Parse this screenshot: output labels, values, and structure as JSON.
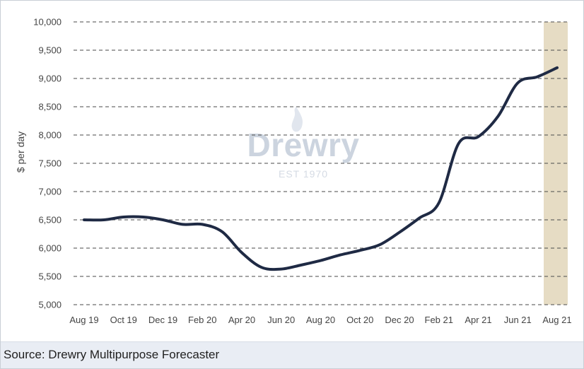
{
  "chart_data": {
    "type": "line",
    "xlabel": "",
    "ylabel": "$ per day",
    "ylim": [
      5000,
      10000
    ],
    "yticks": [
      5000,
      5500,
      6000,
      6500,
      7000,
      7500,
      8000,
      8500,
      9000,
      9500,
      10000
    ],
    "ytick_labels": [
      "5,000",
      "5,500",
      "6,000",
      "6,500",
      "7,000",
      "7,500",
      "8,000",
      "8,500",
      "9,000",
      "9,500",
      "10,000"
    ],
    "categories": [
      "Aug 19",
      "Sep 19",
      "Oct 19",
      "Nov 19",
      "Dec 19",
      "Jan 20",
      "Feb 20",
      "Mar 20",
      "Apr 20",
      "May 20",
      "Jun 20",
      "Jul 20",
      "Aug 20",
      "Sep 20",
      "Oct 20",
      "Nov 20",
      "Dec 20",
      "Jan 21",
      "Feb 21",
      "Mar 21",
      "Apr 21",
      "May 21",
      "Jun 21",
      "Jul 21",
      "Aug 21"
    ],
    "tick_labels": [
      "Aug 19",
      "Oct 19",
      "Dec 19",
      "Feb 20",
      "Apr 20",
      "Jun 20",
      "Aug 20",
      "Oct 20",
      "Dec 20",
      "Feb 21",
      "Apr 21",
      "Jun 21",
      "Aug 21"
    ],
    "series": [
      {
        "values": [
          6500,
          6500,
          6550,
          6550,
          6500,
          6420,
          6420,
          6290,
          5920,
          5660,
          5630,
          5700,
          5780,
          5880,
          5960,
          6060,
          6280,
          6530,
          6800,
          7850,
          7970,
          8330,
          8920,
          9030,
          9190
        ]
      }
    ],
    "highlight_band": {
      "category": "Aug 21"
    },
    "grid": true,
    "grid_style": "dashed horizontal",
    "legend": "none",
    "colors": {
      "line": "#1f2a44",
      "grid": "#555555",
      "highlight": "#e6dcc4"
    }
  },
  "watermark": {
    "brand": "Drewry",
    "established": "EST 1970"
  },
  "source": {
    "text": "Source: Drewry Multipurpose Forecaster"
  }
}
